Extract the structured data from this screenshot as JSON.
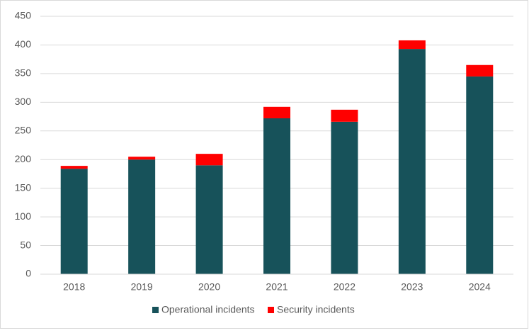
{
  "chart_data": {
    "type": "stacked-bar",
    "categories": [
      "2018",
      "2019",
      "2020",
      "2021",
      "2022",
      "2023",
      "2024"
    ],
    "series": [
      {
        "name": "Operational incidents",
        "color": "#17525a",
        "values": [
          184,
          200,
          190,
          272,
          266,
          393,
          345
        ]
      },
      {
        "name": "Security incidents",
        "color": "#ff0000",
        "values": [
          5,
          5,
          20,
          20,
          21,
          15,
          20
        ]
      }
    ],
    "ylim": [
      0,
      450
    ],
    "yticks": [
      0,
      50,
      100,
      150,
      200,
      250,
      300,
      350,
      400,
      450
    ],
    "grid": true,
    "legend": "bottom"
  }
}
